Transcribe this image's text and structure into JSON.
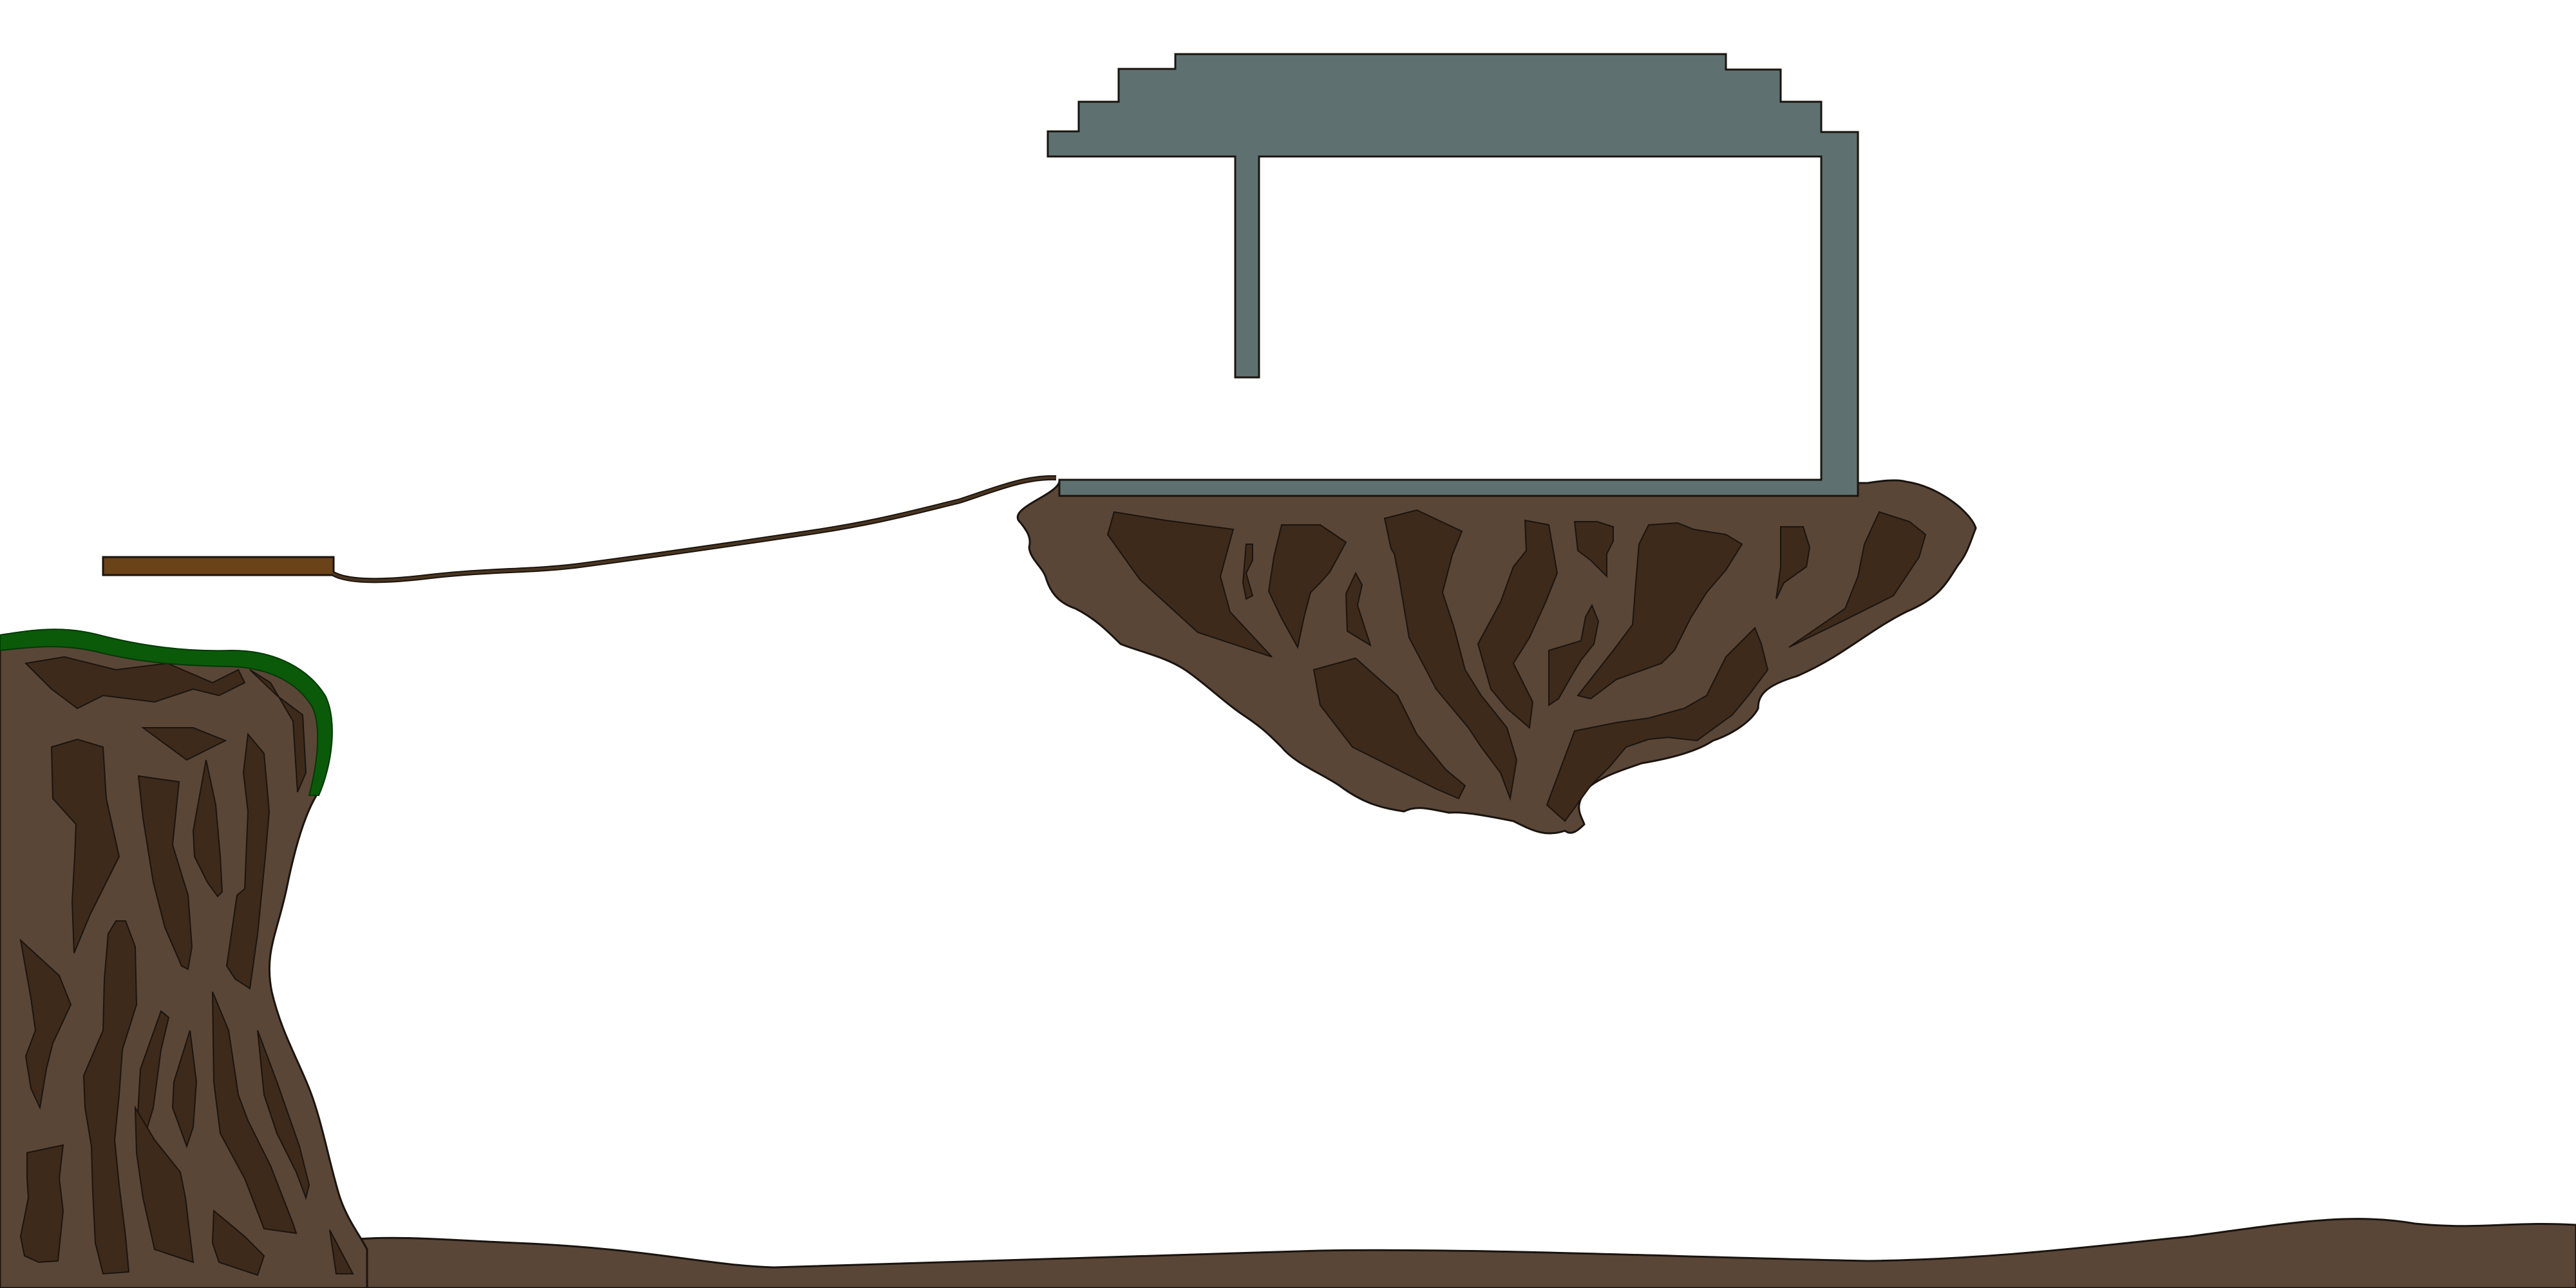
{
  "scene": {
    "background_color": "#ffffff",
    "outline_color": "#1a140f",
    "colors": {
      "dirt": "#5a4637",
      "dirt_dark": "#3d2a1b",
      "grass": "#0a5a0a",
      "plank": "#6b4318",
      "metal": "#5e7170",
      "rope": "#4a3520"
    },
    "objects": [
      {
        "id": "ground",
        "kind": "terrain"
      },
      {
        "id": "cliff",
        "kind": "terrain"
      },
      {
        "id": "grass-ledge",
        "kind": "decoration"
      },
      {
        "id": "wooden-plank",
        "kind": "platform"
      },
      {
        "id": "rope",
        "kind": "connector"
      },
      {
        "id": "floating-island",
        "kind": "terrain"
      },
      {
        "id": "metal-frame",
        "kind": "structure"
      }
    ]
  }
}
